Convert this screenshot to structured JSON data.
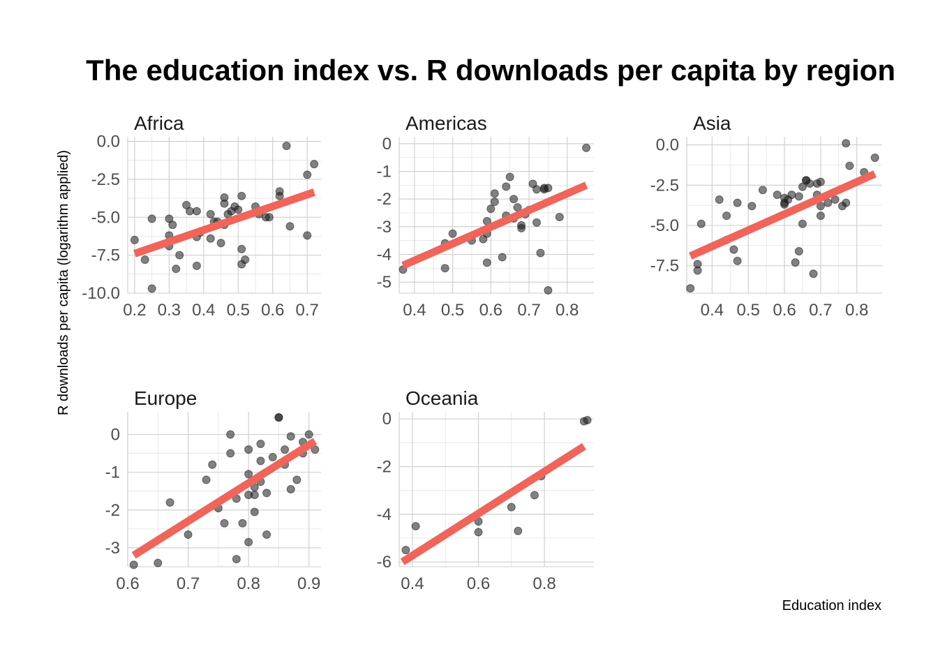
{
  "colors": {
    "point": "#1a1a1a",
    "fit": "#f0645a",
    "grid": "#cccccc"
  },
  "chart_data": {
    "type": "scatter",
    "title": "The education index vs. R downloads per capita by region",
    "xlabel": "Education index",
    "ylabel": "R downloads per capita (logarithm applied)",
    "facets": [
      {
        "name": "Africa",
        "xlim": [
          0.18,
          0.74
        ],
        "ylim": [
          -10.0,
          0.3
        ],
        "xticks": [
          0.2,
          0.3,
          0.4,
          0.5,
          0.6,
          0.7
        ],
        "xtick_labels": [
          "0.2",
          "0.3",
          "0.4",
          "0.5",
          "0.6",
          "0.7"
        ],
        "yticks": [
          0.0,
          -2.5,
          -5.0,
          -7.5,
          -10.0
        ],
        "ytick_labels": [
          "0.0",
          "-2.5",
          "-5.0",
          "-7.5",
          "-10.0"
        ],
        "fit": {
          "x": [
            0.2,
            0.72
          ],
          "y": [
            -7.4,
            -3.35
          ]
        },
        "points": [
          [
            0.2,
            -6.5
          ],
          [
            0.23,
            -7.8
          ],
          [
            0.25,
            -9.7
          ],
          [
            0.25,
            -5.1
          ],
          [
            0.3,
            -5.1
          ],
          [
            0.3,
            -6.2
          ],
          [
            0.3,
            -6.9
          ],
          [
            0.31,
            -5.5
          ],
          [
            0.32,
            -8.4
          ],
          [
            0.33,
            -7.5
          ],
          [
            0.35,
            -4.2
          ],
          [
            0.36,
            -4.6
          ],
          [
            0.38,
            -4.6
          ],
          [
            0.38,
            -6.3
          ],
          [
            0.38,
            -8.2
          ],
          [
            0.39,
            -6.0
          ],
          [
            0.42,
            -4.8
          ],
          [
            0.42,
            -6.4
          ],
          [
            0.43,
            -5.3
          ],
          [
            0.44,
            -5.3
          ],
          [
            0.45,
            -6.7
          ],
          [
            0.46,
            -5.5
          ],
          [
            0.46,
            -4.1
          ],
          [
            0.46,
            -3.7
          ],
          [
            0.47,
            -4.8
          ],
          [
            0.48,
            -4.6
          ],
          [
            0.49,
            -4.3
          ],
          [
            0.5,
            -4.5
          ],
          [
            0.51,
            -3.6
          ],
          [
            0.51,
            -7.1
          ],
          [
            0.51,
            -8.1
          ],
          [
            0.52,
            -7.8
          ],
          [
            0.55,
            -4.3
          ],
          [
            0.56,
            -4.8
          ],
          [
            0.58,
            -5.0
          ],
          [
            0.59,
            -5.0
          ],
          [
            0.62,
            -3.3
          ],
          [
            0.62,
            -3.6
          ],
          [
            0.64,
            -0.3
          ],
          [
            0.65,
            -5.6
          ],
          [
            0.7,
            -2.2
          ],
          [
            0.7,
            -6.2
          ],
          [
            0.72,
            -1.5
          ]
        ]
      },
      {
        "name": "Americas",
        "xlim": [
          0.36,
          0.87
        ],
        "ylim": [
          -5.4,
          0.25
        ],
        "xticks": [
          0.4,
          0.5,
          0.6,
          0.7,
          0.8
        ],
        "xtick_labels": [
          "0.4",
          "0.5",
          "0.6",
          "0.7",
          "0.8"
        ],
        "yticks": [
          0,
          -1,
          -2,
          -3,
          -4,
          -5
        ],
        "ytick_labels": [
          "0",
          "-1",
          "-2",
          "-3",
          "-4",
          "-5"
        ],
        "fit": {
          "x": [
            0.37,
            0.85
          ],
          "y": [
            -4.4,
            -1.5
          ]
        },
        "points": [
          [
            0.37,
            -4.55
          ],
          [
            0.48,
            -3.6
          ],
          [
            0.48,
            -4.5
          ],
          [
            0.5,
            -3.25
          ],
          [
            0.55,
            -3.5
          ],
          [
            0.58,
            -3.45
          ],
          [
            0.59,
            -2.8
          ],
          [
            0.59,
            -4.3
          ],
          [
            0.59,
            -3.25
          ],
          [
            0.6,
            -2.35
          ],
          [
            0.61,
            -1.8
          ],
          [
            0.61,
            -2.1
          ],
          [
            0.63,
            -4.1
          ],
          [
            0.64,
            -1.55
          ],
          [
            0.64,
            -2.6
          ],
          [
            0.65,
            -1.2
          ],
          [
            0.66,
            -2.0
          ],
          [
            0.66,
            -2.7
          ],
          [
            0.67,
            -2.3
          ],
          [
            0.68,
            -3.05
          ],
          [
            0.68,
            -2.95
          ],
          [
            0.69,
            -2.55
          ],
          [
            0.7,
            -2.4
          ],
          [
            0.71,
            -1.45
          ],
          [
            0.72,
            -1.65
          ],
          [
            0.72,
            -2.85
          ],
          [
            0.73,
            -3.95
          ],
          [
            0.74,
            -1.6
          ],
          [
            0.74,
            -1.65
          ],
          [
            0.75,
            -1.6
          ],
          [
            0.75,
            -5.3
          ],
          [
            0.78,
            -2.65
          ],
          [
            0.85,
            -0.15
          ]
        ]
      },
      {
        "name": "Asia",
        "xlim": [
          0.33,
          0.87
        ],
        "ylim": [
          -9.2,
          0.5
        ],
        "xticks": [
          0.4,
          0.5,
          0.6,
          0.7,
          0.8
        ],
        "xtick_labels": [
          "0.4",
          "0.5",
          "0.6",
          "0.7",
          "0.8"
        ],
        "yticks": [
          0.0,
          -2.5,
          -5.0,
          -7.5
        ],
        "ytick_labels": [
          "0.0",
          "-2.5",
          "-5.0",
          "-7.5"
        ],
        "fit": {
          "x": [
            0.34,
            0.85
          ],
          "y": [
            -6.9,
            -1.8
          ]
        },
        "points": [
          [
            0.34,
            -8.9
          ],
          [
            0.36,
            -7.4
          ],
          [
            0.36,
            -7.8
          ],
          [
            0.37,
            -4.9
          ],
          [
            0.42,
            -3.4
          ],
          [
            0.44,
            -4.4
          ],
          [
            0.44,
            -5.9
          ],
          [
            0.46,
            -6.5
          ],
          [
            0.47,
            -3.6
          ],
          [
            0.47,
            -7.2
          ],
          [
            0.51,
            -3.8
          ],
          [
            0.54,
            -2.8
          ],
          [
            0.58,
            -3.1
          ],
          [
            0.6,
            -3.6
          ],
          [
            0.6,
            -3.3
          ],
          [
            0.6,
            -3.7
          ],
          [
            0.61,
            -3.4
          ],
          [
            0.62,
            -3.1
          ],
          [
            0.63,
            -7.3
          ],
          [
            0.64,
            -6.6
          ],
          [
            0.64,
            -3.2
          ],
          [
            0.65,
            -2.6
          ],
          [
            0.65,
            -4.9
          ],
          [
            0.66,
            -2.2
          ],
          [
            0.66,
            -2.2
          ],
          [
            0.67,
            -2.4
          ],
          [
            0.68,
            -8.0
          ],
          [
            0.69,
            -2.4
          ],
          [
            0.69,
            -3.1
          ],
          [
            0.7,
            -2.3
          ],
          [
            0.7,
            -4.4
          ],
          [
            0.7,
            -3.8
          ],
          [
            0.72,
            -3.6
          ],
          [
            0.74,
            -3.4
          ],
          [
            0.76,
            -3.8
          ],
          [
            0.77,
            -3.6
          ],
          [
            0.77,
            0.1
          ],
          [
            0.78,
            -1.3
          ],
          [
            0.82,
            -1.7
          ],
          [
            0.85,
            -0.8
          ]
        ]
      },
      {
        "name": "Europe",
        "xlim": [
          0.6,
          0.92
        ],
        "ylim": [
          -3.5,
          0.6
        ],
        "xticks": [
          0.6,
          0.7,
          0.8,
          0.9
        ],
        "xtick_labels": [
          "0.6",
          "0.7",
          "0.8",
          "0.9"
        ],
        "yticks": [
          0,
          -1,
          -2,
          -3
        ],
        "ytick_labels": [
          "0",
          "-1",
          "-2",
          "-3"
        ],
        "fit": {
          "x": [
            0.61,
            0.91
          ],
          "y": [
            -3.2,
            -0.18
          ]
        },
        "points": [
          [
            0.61,
            -3.45
          ],
          [
            0.65,
            -3.4
          ],
          [
            0.67,
            -1.8
          ],
          [
            0.7,
            -2.65
          ],
          [
            0.73,
            -1.2
          ],
          [
            0.74,
            -0.8
          ],
          [
            0.75,
            -1.95
          ],
          [
            0.76,
            -2.35
          ],
          [
            0.77,
            0.0
          ],
          [
            0.77,
            -0.5
          ],
          [
            0.78,
            -1.7
          ],
          [
            0.78,
            -3.3
          ],
          [
            0.79,
            -2.35
          ],
          [
            0.8,
            -1.6
          ],
          [
            0.8,
            -0.4
          ],
          [
            0.8,
            -1.05
          ],
          [
            0.8,
            -2.85
          ],
          [
            0.81,
            -2.05
          ],
          [
            0.81,
            -1.4
          ],
          [
            0.81,
            -1.6
          ],
          [
            0.82,
            -0.7
          ],
          [
            0.82,
            -1.25
          ],
          [
            0.82,
            -0.25
          ],
          [
            0.83,
            -2.65
          ],
          [
            0.83,
            -1.55
          ],
          [
            0.84,
            -0.6
          ],
          [
            0.85,
            0.45
          ],
          [
            0.85,
            0.45
          ],
          [
            0.86,
            -0.4
          ],
          [
            0.86,
            -0.8
          ],
          [
            0.87,
            -1.45
          ],
          [
            0.87,
            -0.05
          ],
          [
            0.88,
            -1.2
          ],
          [
            0.89,
            -0.2
          ],
          [
            0.89,
            -0.5
          ],
          [
            0.9,
            0.0
          ],
          [
            0.91,
            -0.4
          ]
        ]
      },
      {
        "name": "Oceania",
        "xlim": [
          0.36,
          0.95
        ],
        "ylim": [
          -6.2,
          0.3
        ],
        "xticks": [
          0.4,
          0.6,
          0.8
        ],
        "xtick_labels": [
          "0.4",
          "0.6",
          "0.8"
        ],
        "yticks": [
          0,
          -2,
          -4,
          -6
        ],
        "ytick_labels": [
          "0",
          "-2",
          "-4",
          "-6"
        ],
        "fit": {
          "x": [
            0.37,
            0.92
          ],
          "y": [
            -6.0,
            -1.15
          ]
        },
        "points": [
          [
            0.38,
            -5.5
          ],
          [
            0.41,
            -4.5
          ],
          [
            0.6,
            -4.3
          ],
          [
            0.6,
            -4.75
          ],
          [
            0.7,
            -3.7
          ],
          [
            0.72,
            -4.7
          ],
          [
            0.77,
            -3.2
          ],
          [
            0.79,
            -2.4
          ],
          [
            0.92,
            -0.1
          ],
          [
            0.93,
            -0.05
          ]
        ]
      }
    ]
  }
}
